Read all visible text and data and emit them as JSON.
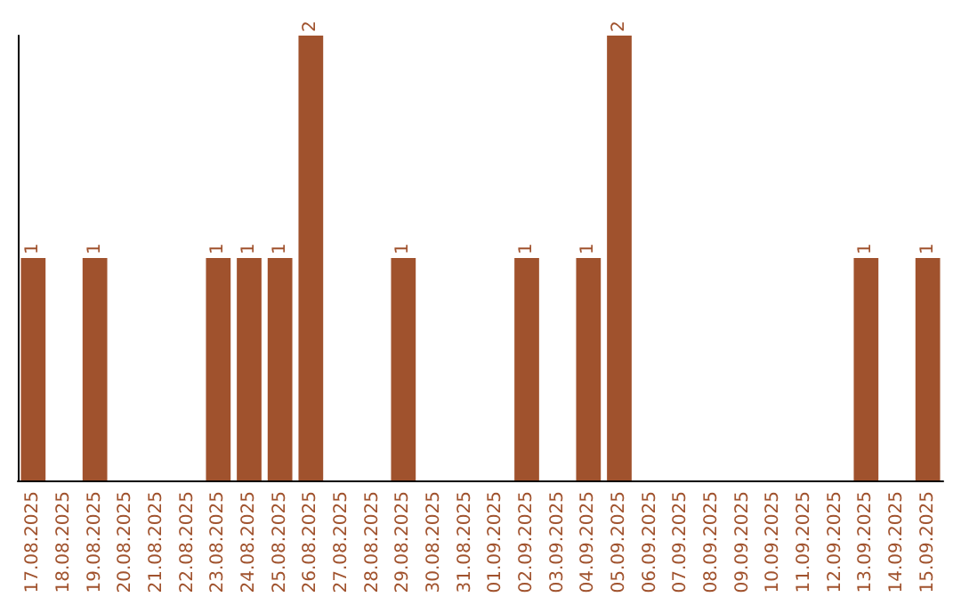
{
  "chart_data": {
    "type": "bar",
    "categories": [
      "17.08.2025",
      "18.08.2025",
      "19.08.2025",
      "20.08.2025",
      "21.08.2025",
      "22.08.2025",
      "23.08.2025",
      "24.08.2025",
      "25.08.2025",
      "26.08.2025",
      "27.08.2025",
      "28.08.2025",
      "29.08.2025",
      "30.08.2025",
      "31.08.2025",
      "01.09.2025",
      "02.09.2025",
      "03.09.2025",
      "04.09.2025",
      "05.09.2025",
      "06.09.2025",
      "07.09.2025",
      "08.09.2025",
      "09.09.2025",
      "10.09.2025",
      "11.09.2025",
      "12.09.2025",
      "13.09.2025",
      "14.09.2025",
      "15.09.2025"
    ],
    "values": [
      1,
      0,
      1,
      0,
      0,
      0,
      1,
      1,
      1,
      2,
      0,
      0,
      1,
      0,
      0,
      0,
      1,
      0,
      1,
      2,
      0,
      0,
      0,
      0,
      0,
      0,
      0,
      1,
      0,
      1
    ],
    "color": "#a0522d",
    "value_labels": [
      "1",
      null,
      "1",
      null,
      null,
      null,
      "1",
      "1",
      "1",
      "2",
      null,
      null,
      "1",
      null,
      null,
      null,
      "1",
      null,
      "1",
      "2",
      null,
      null,
      null,
      null,
      null,
      null,
      null,
      "1",
      null,
      "1"
    ]
  }
}
